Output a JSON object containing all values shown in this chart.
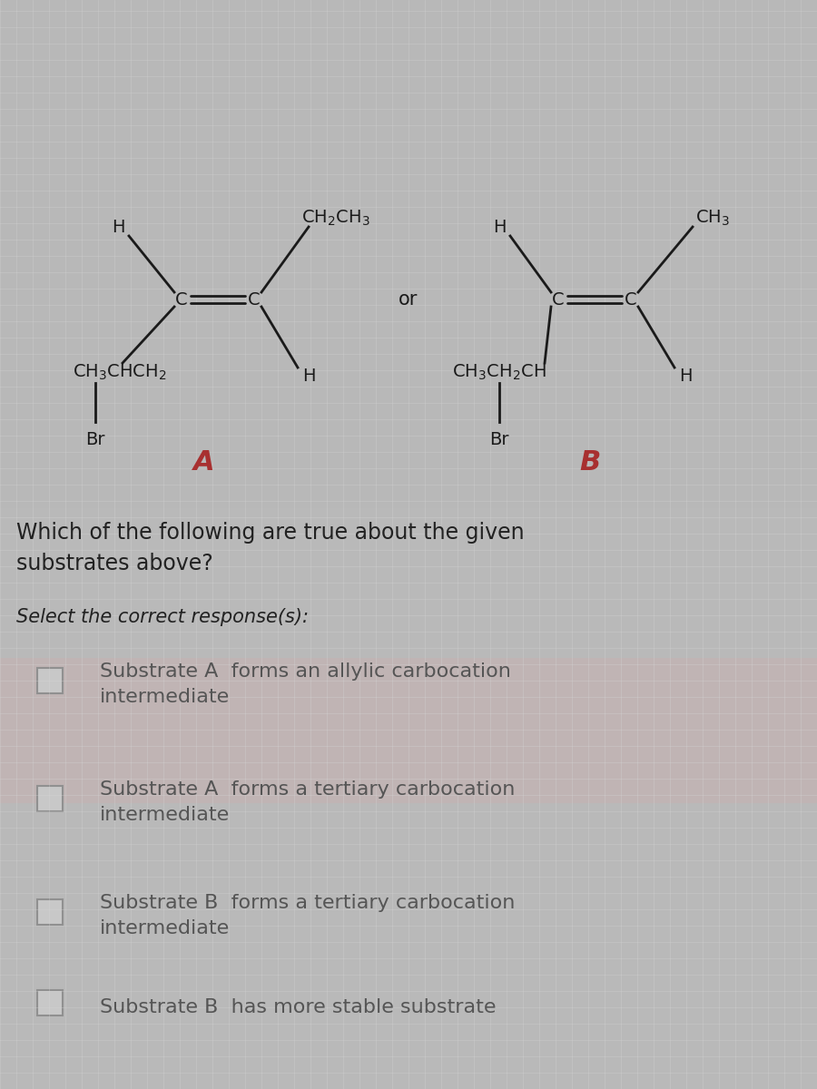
{
  "bg_color_top": "#b8b8b8",
  "bg_color_bottom": "#c0c0c0",
  "grid_color": "#d8d8d8",
  "molecule_color": "#1a1a1a",
  "question_text": "Which of the following are true about the given\nsubstrates above?",
  "select_text": "Select the correct response(s):",
  "options": [
    "Substrate A  forms an allylic carbocation\nintermediate",
    "Substrate A  forms a tertiary carbocation\nintermediate",
    "Substrate B  forms a tertiary carbocation\nintermediate",
    "Substrate B  has more stable substrate"
  ],
  "label_A": "A",
  "label_B": "B",
  "label_or": "or",
  "label_color_AB": "#a83030",
  "text_color": "#2a2a2a",
  "question_text_color": "#222222",
  "option_text_color": "#555555",
  "checkbox_color": "#909090",
  "checkbox_face": "#c8c8c8",
  "highlight_color": "#d4b8b8",
  "option1_highlight": true
}
